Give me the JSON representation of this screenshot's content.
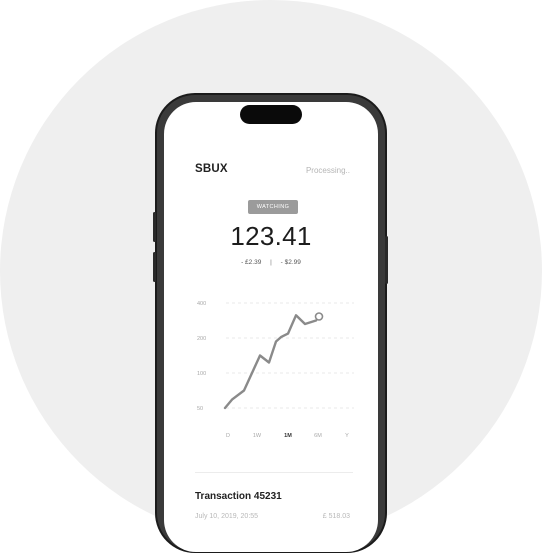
{
  "stock": {
    "ticker": "SBUX",
    "status": "Processing..",
    "badge": "WATCHING",
    "price": "123.41",
    "change_1": "- £2.39",
    "separator": "|",
    "change_2": "- $2.99"
  },
  "chart_data": {
    "type": "line",
    "y_ticks": [
      "400",
      "200",
      "100",
      "50"
    ],
    "x_ticks": [
      "D",
      "1W",
      "1M",
      "6M",
      "Y"
    ],
    "selected_range": "1M",
    "grid": true,
    "line_color": "#8a8a8a",
    "y_values_approx": [
      50,
      62,
      75,
      150,
      130,
      190,
      205,
      225,
      330,
      280,
      300
    ],
    "highlight_point": "last"
  },
  "transaction": {
    "title": "Transaction 45231",
    "date": "July 10, 2019, 20:55",
    "amount": "£ 518.03"
  }
}
